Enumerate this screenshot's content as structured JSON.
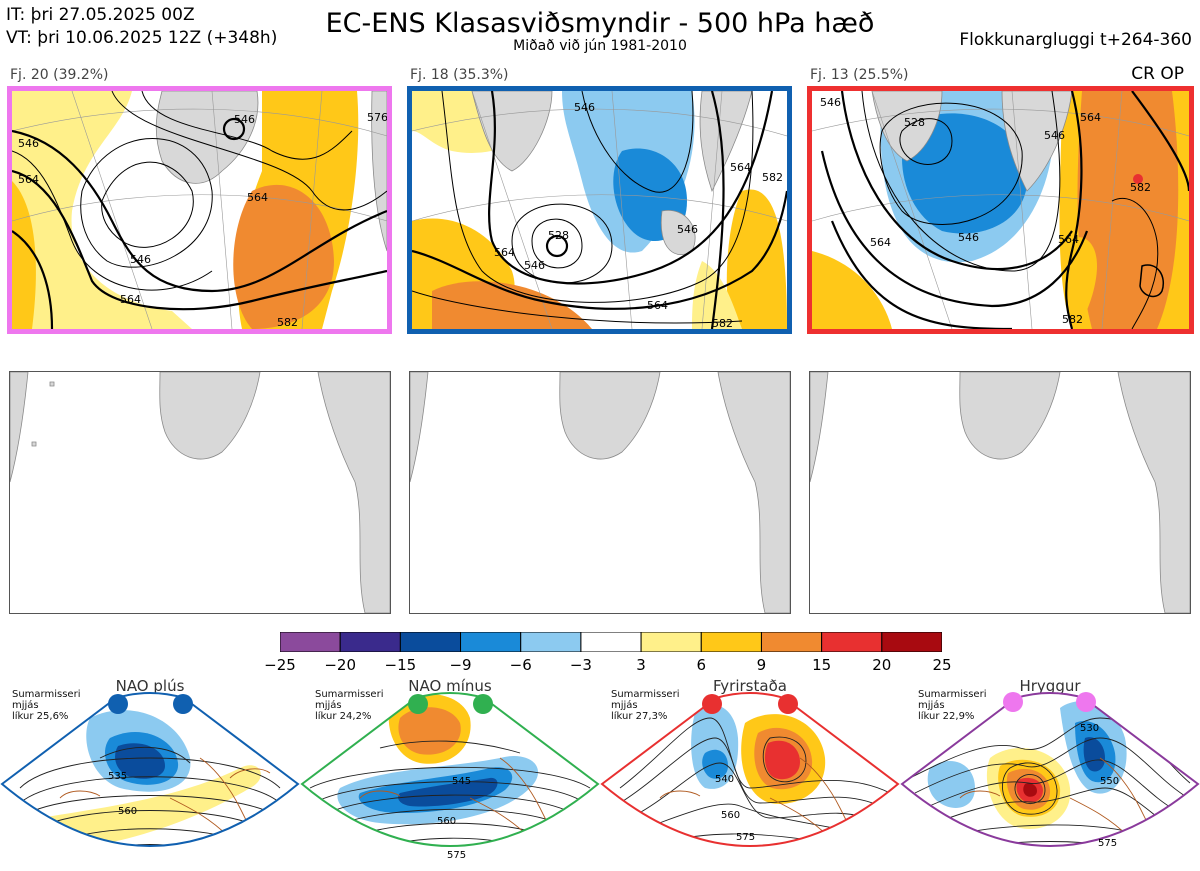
{
  "header": {
    "it_line": "IT: þri 27.05.2025 00Z",
    "vt_line": "VT: þri 10.06.2025 12Z  (+348h)",
    "title": "EC-ENS Klasasviðsmyndir - 500 hPa hæð",
    "subtitle": "Miðað við jún 1981-2010",
    "window": "Flokkunargluggi t+264-360"
  },
  "clusters": [
    {
      "label": "Fj. 20 (39.2%)",
      "frame_color": "#ee77ee",
      "contour_labels": [
        "546",
        "564",
        "546",
        "564",
        "546",
        "564",
        "582",
        "576"
      ]
    },
    {
      "label": "Fj. 18 (35.3%)",
      "frame_color": "#1060b0",
      "contour_labels": [
        "546",
        "564",
        "528",
        "546",
        "564",
        "582",
        "564",
        "546",
        "582"
      ]
    },
    {
      "label": "Fj. 13 (25.5%)",
      "frame_color": "#ee3030",
      "contour_labels": [
        "528",
        "546",
        "564",
        "546",
        "564",
        "582",
        "582",
        "564",
        "546"
      ]
    }
  ],
  "cr_op": "CR OP",
  "colorbar": {
    "ticks": [
      "−25",
      "−20",
      "−15",
      "−9",
      "−6",
      "−3",
      "3",
      "6",
      "9",
      "15",
      "20",
      "25"
    ],
    "colors": [
      "#8b4a9c",
      "#3a2a8c",
      "#0a4c9c",
      "#1a8ad8",
      "#8ccaf0",
      "#ffffff",
      "#fff08a",
      "#ffc818",
      "#f08a30",
      "#e83030",
      "#a80a10"
    ]
  },
  "regimes": [
    {
      "name": "NAO plús",
      "info_line1": "Sumarmisseri",
      "info_line2": "mjjás",
      "info_line3": "líkur 25,6%",
      "frame_color": "#1060b0",
      "dot_color": "#1060b0",
      "contour_labels": [
        "535",
        "560"
      ]
    },
    {
      "name": "NAO mínus",
      "info_line1": "Sumarmisseri",
      "info_line2": "mjjás",
      "info_line3": "líkur 24,2%",
      "frame_color": "#30b050",
      "dot_color": "#30b050",
      "contour_labels": [
        "545",
        "560",
        "575"
      ]
    },
    {
      "name": "Fyrirstaða",
      "info_line1": "Sumarmisseri",
      "info_line2": "mjjás",
      "info_line3": "líkur 27,3%",
      "frame_color": "#e83030",
      "dot_color": "#e83030",
      "contour_labels": [
        "540",
        "560",
        "575"
      ]
    },
    {
      "name": "Hryggur",
      "info_line1": "Sumarmisseri",
      "info_line2": "mjjás",
      "info_line3": "líkur 22,9%",
      "frame_color": "#8a3a9c",
      "dot_color": "#ee77ee",
      "contour_labels": [
        "530",
        "550",
        "575"
      ]
    }
  ]
}
